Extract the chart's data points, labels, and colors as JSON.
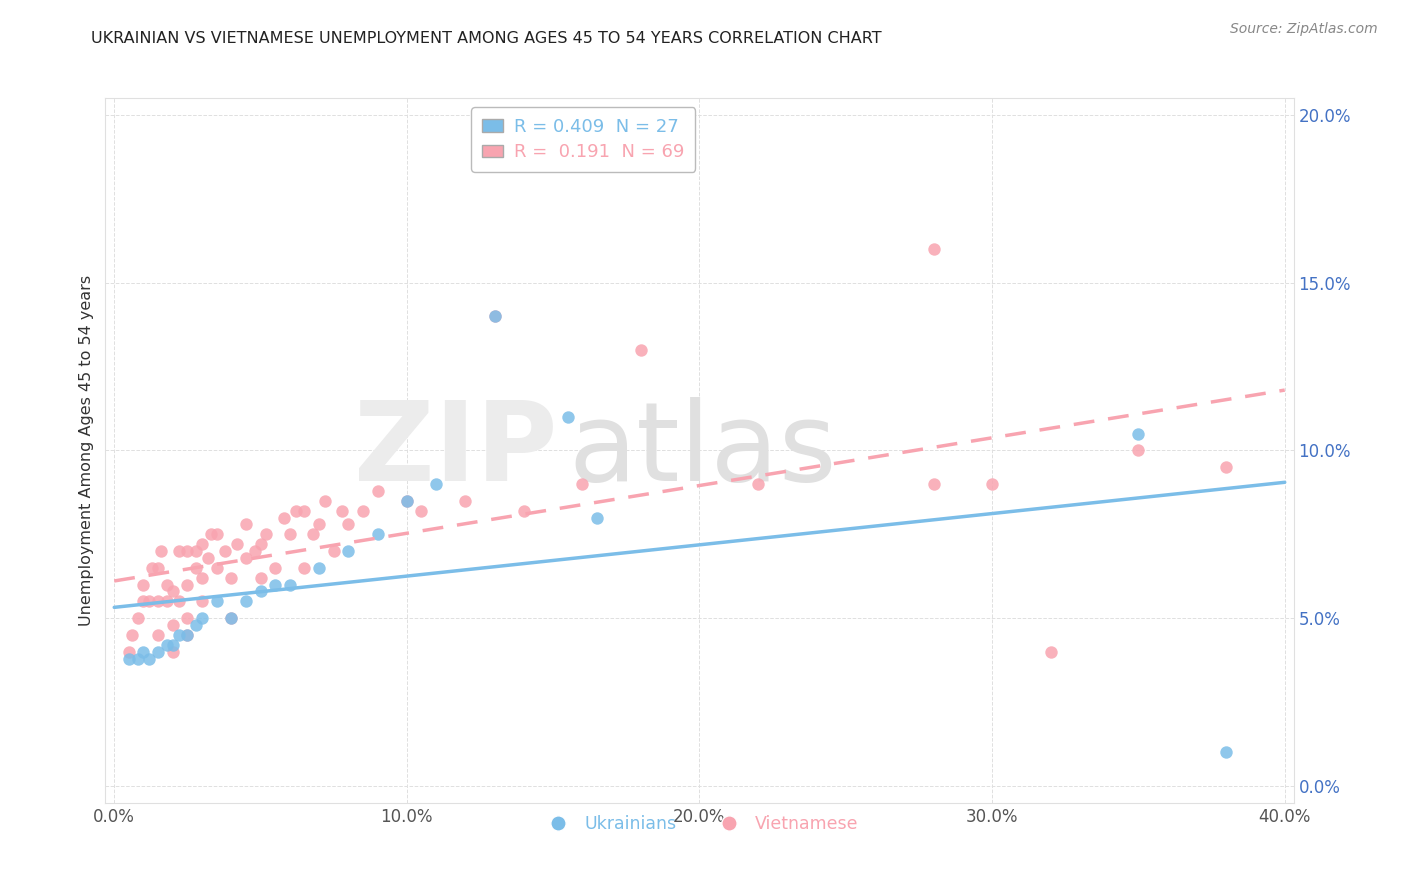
{
  "title": "UKRAINIAN VS VIETNAMESE UNEMPLOYMENT AMONG AGES 45 TO 54 YEARS CORRELATION CHART",
  "source": "Source: ZipAtlas.com",
  "ylabel": "Unemployment Among Ages 45 to 54 years",
  "xlim": [
    -0.003,
    0.403
  ],
  "ylim": [
    -0.005,
    0.205
  ],
  "xticks": [
    0.0,
    0.1,
    0.2,
    0.3,
    0.4
  ],
  "yticks": [
    0.0,
    0.05,
    0.1,
    0.15,
    0.2
  ],
  "xticklabels": [
    "0.0%",
    "10.0%",
    "20.0%",
    "30.0%",
    "40.0%"
  ],
  "yticklabels": [
    "0.0%",
    "5.0%",
    "10.0%",
    "15.0%",
    "20.0%"
  ],
  "color_ua": "#7bbde8",
  "color_vn": "#f8a4b0",
  "ua_x": [
    0.005,
    0.008,
    0.01,
    0.012,
    0.015,
    0.018,
    0.02,
    0.022,
    0.025,
    0.028,
    0.03,
    0.035,
    0.04,
    0.045,
    0.05,
    0.055,
    0.06,
    0.07,
    0.08,
    0.09,
    0.1,
    0.11,
    0.13,
    0.155,
    0.165,
    0.35,
    0.38
  ],
  "ua_y": [
    0.038,
    0.038,
    0.04,
    0.038,
    0.04,
    0.042,
    0.042,
    0.045,
    0.045,
    0.048,
    0.05,
    0.055,
    0.05,
    0.055,
    0.058,
    0.06,
    0.06,
    0.065,
    0.07,
    0.075,
    0.085,
    0.09,
    0.14,
    0.11,
    0.08,
    0.105,
    0.01
  ],
  "vn_x": [
    0.005,
    0.006,
    0.008,
    0.01,
    0.01,
    0.012,
    0.013,
    0.015,
    0.015,
    0.015,
    0.016,
    0.018,
    0.018,
    0.02,
    0.02,
    0.02,
    0.022,
    0.022,
    0.025,
    0.025,
    0.025,
    0.025,
    0.028,
    0.028,
    0.03,
    0.03,
    0.03,
    0.032,
    0.033,
    0.035,
    0.035,
    0.038,
    0.04,
    0.04,
    0.042,
    0.045,
    0.045,
    0.048,
    0.05,
    0.05,
    0.052,
    0.055,
    0.058,
    0.06,
    0.062,
    0.065,
    0.065,
    0.068,
    0.07,
    0.072,
    0.075,
    0.078,
    0.08,
    0.085,
    0.09,
    0.1,
    0.105,
    0.12,
    0.13,
    0.14,
    0.16,
    0.18,
    0.22,
    0.28,
    0.28,
    0.3,
    0.32,
    0.35,
    0.38
  ],
  "vn_y": [
    0.04,
    0.045,
    0.05,
    0.06,
    0.055,
    0.055,
    0.065,
    0.045,
    0.055,
    0.065,
    0.07,
    0.055,
    0.06,
    0.04,
    0.048,
    0.058,
    0.055,
    0.07,
    0.045,
    0.05,
    0.06,
    0.07,
    0.065,
    0.07,
    0.055,
    0.062,
    0.072,
    0.068,
    0.075,
    0.065,
    0.075,
    0.07,
    0.05,
    0.062,
    0.072,
    0.068,
    0.078,
    0.07,
    0.062,
    0.072,
    0.075,
    0.065,
    0.08,
    0.075,
    0.082,
    0.065,
    0.082,
    0.075,
    0.078,
    0.085,
    0.07,
    0.082,
    0.078,
    0.082,
    0.088,
    0.085,
    0.082,
    0.085,
    0.14,
    0.082,
    0.09,
    0.13,
    0.09,
    0.09,
    0.16,
    0.09,
    0.04,
    0.1,
    0.095
  ]
}
